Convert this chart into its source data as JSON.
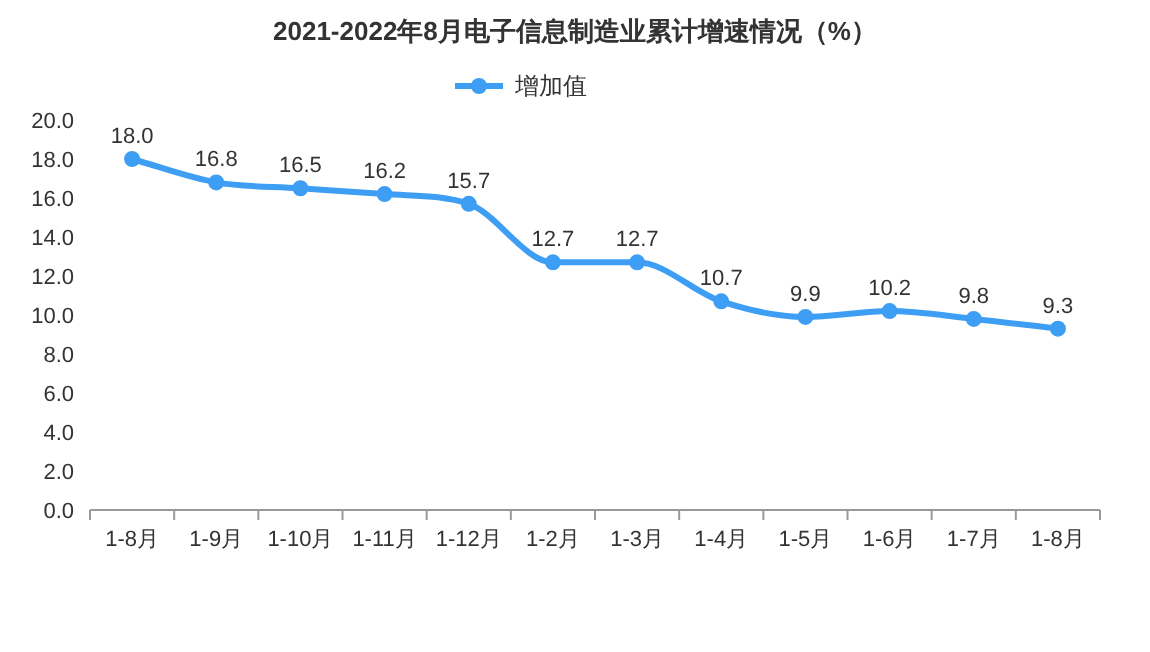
{
  "chart_data": {
    "type": "line",
    "title": "2021-2022年8月电子信息制造业累计增速情况（%）",
    "categories": [
      "1-8月",
      "1-9月",
      "1-10月",
      "1-11月",
      "1-12月",
      "1-2月",
      "1-3月",
      "1-4月",
      "1-5月",
      "1-6月",
      "1-7月",
      "1-8月"
    ],
    "series": [
      {
        "name": "增加值",
        "color": "#3d9ef4",
        "values": [
          18.0,
          16.8,
          16.5,
          16.2,
          15.7,
          12.7,
          12.7,
          10.7,
          9.9,
          10.2,
          9.8,
          9.3
        ],
        "value_labels": [
          "18.0",
          "16.8",
          "16.5",
          "16.2",
          "15.7",
          "12.7",
          "12.7",
          "10.7",
          "9.9",
          "10.2",
          "9.8",
          "9.3"
        ]
      }
    ],
    "ylim": [
      0,
      20
    ],
    "yticks": [
      {
        "value": 0,
        "label": "0.0"
      },
      {
        "value": 2,
        "label": "2.0"
      },
      {
        "value": 4,
        "label": "4.0"
      },
      {
        "value": 6,
        "label": "6.0"
      },
      {
        "value": 8,
        "label": "8.0"
      },
      {
        "value": 10,
        "label": "10.0"
      },
      {
        "value": 12,
        "label": "12.0"
      },
      {
        "value": 14,
        "label": "14.0"
      },
      {
        "value": 16,
        "label": "16.0"
      },
      {
        "value": 18,
        "label": "18.0"
      },
      {
        "value": 20,
        "label": "20.0"
      }
    ],
    "grid": false,
    "legend": "top",
    "marker": "circle",
    "line_style": "solid"
  }
}
